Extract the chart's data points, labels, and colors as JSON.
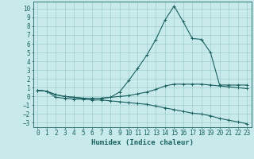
{
  "xlabel": "Humidex (Indice chaleur)",
  "xlim": [
    -0.5,
    23.5
  ],
  "ylim": [
    -3.5,
    10.8
  ],
  "xticks": [
    0,
    1,
    2,
    3,
    4,
    5,
    6,
    7,
    8,
    9,
    10,
    11,
    12,
    13,
    14,
    15,
    16,
    17,
    18,
    19,
    20,
    21,
    22,
    23
  ],
  "yticks": [
    -3,
    -2,
    -1,
    0,
    1,
    2,
    3,
    4,
    5,
    6,
    7,
    8,
    9,
    10
  ],
  "bg_color": "#c8eaea",
  "grid_color": "#9ecece",
  "line_color": "#1a6060",
  "line1_x": [
    0,
    1,
    2,
    3,
    4,
    5,
    6,
    7,
    8,
    9,
    10,
    11,
    12,
    13,
    14,
    15,
    16,
    17,
    18,
    19,
    20,
    21,
    22,
    23
  ],
  "line1_y": [
    0.7,
    0.6,
    0.2,
    0.0,
    -0.1,
    -0.2,
    -0.2,
    -0.2,
    -0.1,
    0.5,
    1.8,
    3.2,
    4.7,
    6.5,
    8.7,
    10.3,
    8.5,
    6.6,
    6.5,
    5.0,
    1.3,
    1.3,
    1.3,
    1.3
  ],
  "line2_x": [
    0,
    1,
    2,
    3,
    4,
    5,
    6,
    7,
    8,
    9,
    10,
    11,
    12,
    13,
    14,
    15,
    16,
    17,
    18,
    19,
    20,
    21,
    22,
    23
  ],
  "line2_y": [
    0.7,
    0.6,
    0.2,
    0.0,
    -0.1,
    -0.2,
    -0.2,
    -0.2,
    -0.1,
    0.0,
    0.1,
    0.3,
    0.5,
    0.8,
    1.2,
    1.4,
    1.4,
    1.4,
    1.4,
    1.3,
    1.2,
    1.1,
    1.0,
    0.9
  ],
  "line3_x": [
    0,
    1,
    2,
    3,
    4,
    5,
    6,
    7,
    8,
    9,
    10,
    11,
    12,
    13,
    14,
    15,
    16,
    17,
    18,
    19,
    20,
    21,
    22,
    23
  ],
  "line3_y": [
    0.7,
    0.6,
    -0.1,
    -0.2,
    -0.3,
    -0.3,
    -0.4,
    -0.4,
    -0.5,
    -0.6,
    -0.7,
    -0.8,
    -0.9,
    -1.1,
    -1.3,
    -1.5,
    -1.7,
    -1.9,
    -2.0,
    -2.2,
    -2.5,
    -2.7,
    -2.9,
    -3.1
  ],
  "marker": "+",
  "markersize": 3.5,
  "linewidth": 0.8,
  "tick_fontsize": 5.5,
  "label_fontsize": 6.5
}
